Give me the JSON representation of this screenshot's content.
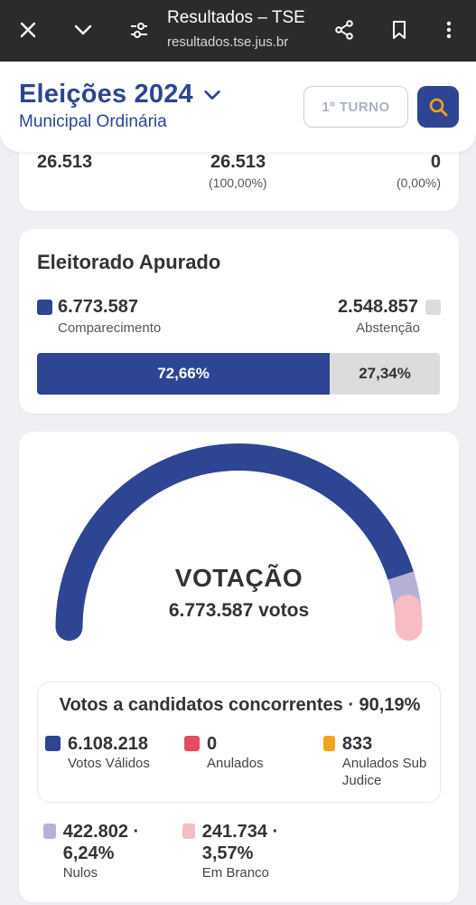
{
  "browser": {
    "title": "Resultados – TSE",
    "url": "resultados.tse.jus.br"
  },
  "header": {
    "title": "Eleições 2024",
    "subtitle": "Municipal Ordinária",
    "turno_label": "1º TURNO"
  },
  "summary": {
    "col1_value": "26.513",
    "col2_value": "26.513",
    "col2_pct": "(100,00%)",
    "col3_value": "0",
    "col3_pct": "(0,00%)"
  },
  "eleitorado": {
    "title": "Eleitorado Apurado",
    "comparecimento_value": "6.773.587",
    "comparecimento_label": "Comparecimento",
    "abstencao_value": "2.548.857",
    "abstencao_label": "Abstenção",
    "comparecimento_pct": "72,66%",
    "abstencao_pct": "27,34%",
    "comparecimento_fraction": 0.7266
  },
  "votacao": {
    "title": "VOTAÇÃO",
    "votes": "6.773.587 votos",
    "gauge_fractions": {
      "validos": 0.9019,
      "nulos": 0.0624,
      "brancos": 0.0357
    },
    "candidatos_title": "Votos a candidatos concorrentes · 90,19%",
    "validos_value": "6.108.218",
    "validos_label": "Votos Válidos",
    "anulados_value": "0",
    "anulados_label": "Anulados",
    "subjudice_value": "833",
    "subjudice_label": "Anulados Sub Judice",
    "nulos_value": "422.802 · 6,24%",
    "nulos_label": "Nulos",
    "branco_value": "241.734 · 3,57%",
    "branco_label": "Em Branco"
  },
  "colors": {
    "primary": "#2d4592",
    "abstencao": "#dcdcdc",
    "anulados": "#e84a5f",
    "subjudice": "#f5a31a",
    "nulos": "#b5b1d6",
    "branco": "#f7bcc4"
  },
  "icons": [
    "close-icon",
    "chevron-down-icon",
    "tune-icon",
    "share-icon",
    "bookmark-icon",
    "more-vert-icon",
    "search-icon"
  ]
}
